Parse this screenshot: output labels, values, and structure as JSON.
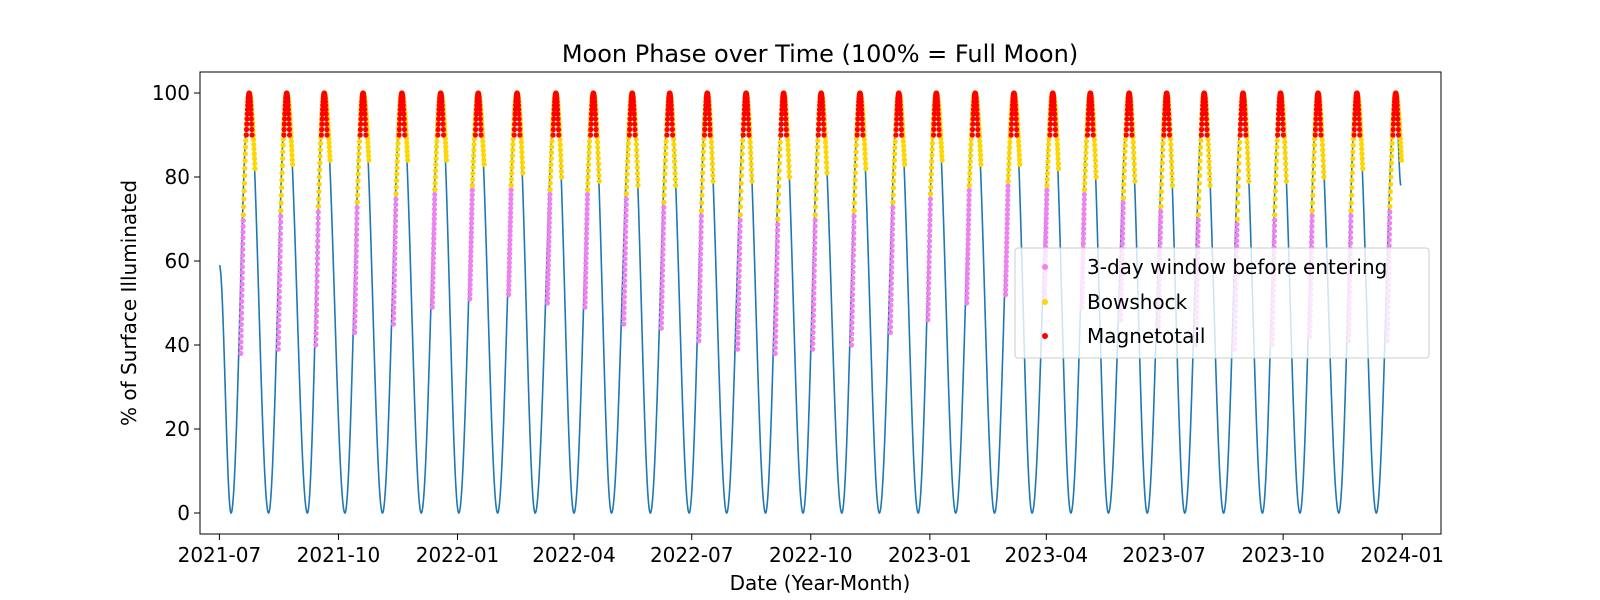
{
  "chart_data": {
    "type": "line",
    "title": "Moon Phase over Time (100% = Full Moon)",
    "xlabel": "Date (Year-Month)",
    "ylabel": "% of Surface Illuminated",
    "xlim": [
      "2021-06-16",
      "2024-01-31"
    ],
    "ylim": [
      -5,
      105
    ],
    "x_ticks": [
      "2021-07",
      "2021-10",
      "2022-01",
      "2022-04",
      "2022-07",
      "2022-10",
      "2023-01",
      "2023-04",
      "2023-07",
      "2023-10",
      "2024-01"
    ],
    "y_ticks": [
      0,
      20,
      40,
      60,
      80,
      100
    ],
    "grid": false,
    "legend_placement": "center-right",
    "series": [
      {
        "role": "phase-line",
        "color": "#1f77b4",
        "x_range": [
          "2021-07-01",
          "2023-12-31"
        ],
        "start_value": 59,
        "end_value": 78,
        "new_moons": [
          "2021-07-10",
          "2021-08-08",
          "2021-09-07",
          "2021-10-06",
          "2021-11-04",
          "2021-12-04",
          "2022-01-02",
          "2022-02-01",
          "2022-03-02",
          "2022-04-01",
          "2022-04-30",
          "2022-05-30",
          "2022-06-29",
          "2022-07-28",
          "2022-08-27",
          "2022-09-25",
          "2022-10-25",
          "2022-11-23",
          "2022-12-23",
          "2023-01-21",
          "2023-02-20",
          "2023-03-21",
          "2023-04-20",
          "2023-05-19",
          "2023-06-18",
          "2023-07-17",
          "2023-08-16",
          "2023-09-15",
          "2023-10-14",
          "2023-11-13",
          "2023-12-12"
        ],
        "full_moons": [
          "2021-07-24",
          "2021-08-22",
          "2021-09-20",
          "2021-10-20",
          "2021-11-19",
          "2021-12-19",
          "2022-01-17",
          "2022-02-16",
          "2022-03-18",
          "2022-04-16",
          "2022-05-16",
          "2022-06-14",
          "2022-07-13",
          "2022-08-12",
          "2022-09-10",
          "2022-10-09",
          "2022-11-08",
          "2022-12-08",
          "2023-01-06",
          "2023-02-05",
          "2023-03-07",
          "2023-04-06",
          "2023-05-05",
          "2023-06-04",
          "2023-07-03",
          "2023-08-01",
          "2023-08-31",
          "2023-09-29",
          "2023-10-28",
          "2023-11-27",
          "2023-12-27"
        ]
      },
      {
        "name": "3-day window before entering",
        "color": "#ee82ee",
        "days_before_full_start": 6.5,
        "days_before_full_end": 4.5,
        "y_start_values": [
          38,
          39,
          40,
          43,
          45,
          49,
          51,
          52,
          50,
          49,
          45,
          44,
          41,
          39,
          38,
          39,
          40,
          43,
          46,
          50,
          52,
          51,
          49,
          46,
          43,
          40,
          39,
          40,
          42,
          41,
          41
        ],
        "y_end_values": [
          71,
          72,
          73,
          74,
          76,
          77,
          78,
          78,
          77,
          77,
          76,
          74,
          72,
          71,
          70,
          71,
          72,
          74,
          76,
          78,
          79,
          78,
          77,
          75,
          73,
          71,
          70,
          71,
          72,
          72,
          73
        ]
      },
      {
        "name": "Bowshock",
        "color": "#ffd700",
        "days_before_full_start": 4.5,
        "days_after_full_end": 4.5,
        "y_start_values": [
          71,
          72,
          73,
          74,
          76,
          77,
          78,
          78,
          77,
          77,
          76,
          74,
          72,
          71,
          70,
          71,
          72,
          74,
          76,
          78,
          79,
          78,
          77,
          75,
          73,
          71,
          70,
          71,
          72,
          72,
          73
        ],
        "y_end_values": [
          82,
          83,
          84,
          84,
          84,
          84,
          83,
          81,
          80,
          79,
          78,
          78,
          79,
          79,
          80,
          81,
          82,
          83,
          84,
          83,
          83,
          82,
          80,
          79,
          78,
          78,
          79,
          79,
          80,
          82,
          84
        ]
      },
      {
        "name": "Magnetotail",
        "color": "#ff0000",
        "days_before_full_start": 2.2,
        "days_after_full_end": 2.2,
        "y_min": 90,
        "y_peak": 100
      }
    ]
  }
}
